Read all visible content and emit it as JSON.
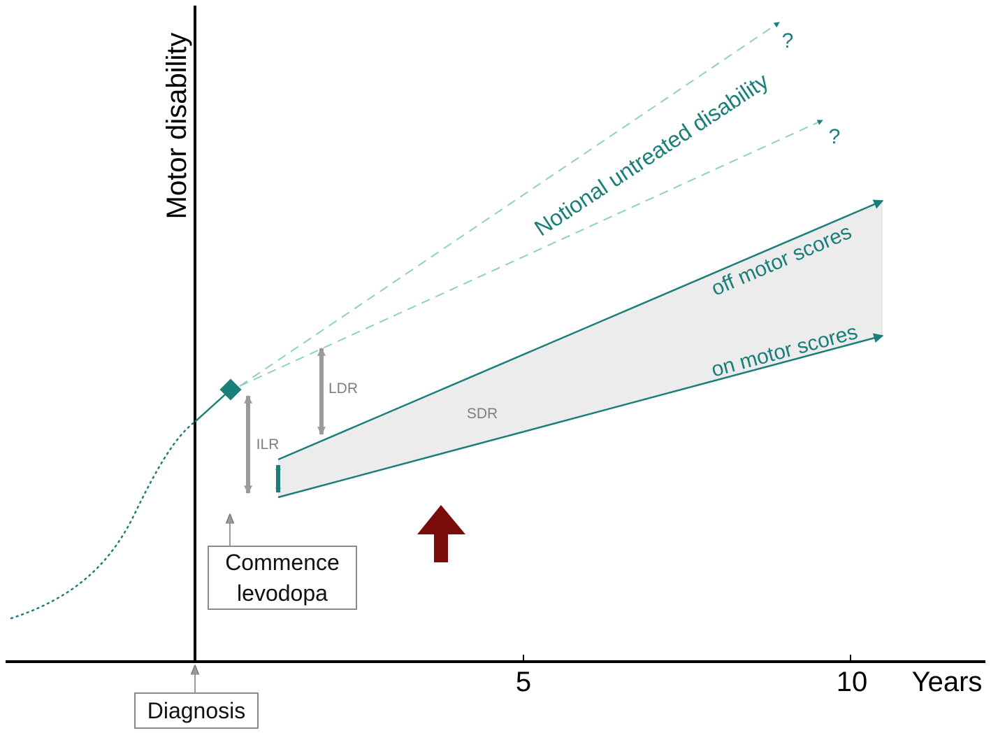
{
  "axes": {
    "y_label": "Motor disability",
    "x_unit": "Years",
    "ticks": [
      "5",
      "10"
    ]
  },
  "labels": {
    "notional": "Notional untreated disability",
    "off_scores": "off motor scores",
    "on_scores": "on motor scores",
    "question_upper": "?",
    "question_lower": "?",
    "ilr": "ILR",
    "ldr": "LDR",
    "sdr": "SDR"
  },
  "boxes": {
    "diagnosis": "Diagnosis",
    "levodopa_line1": "Commence",
    "levodopa_line2": "levodopa"
  },
  "colors": {
    "teal": "#1a7f7a",
    "teal_light": "#8fcfc6",
    "grey_arrow": "#9a9a9a",
    "band_fill": "#ececec",
    "dark_red": "#7a0b0b",
    "axis": "#000000"
  }
}
